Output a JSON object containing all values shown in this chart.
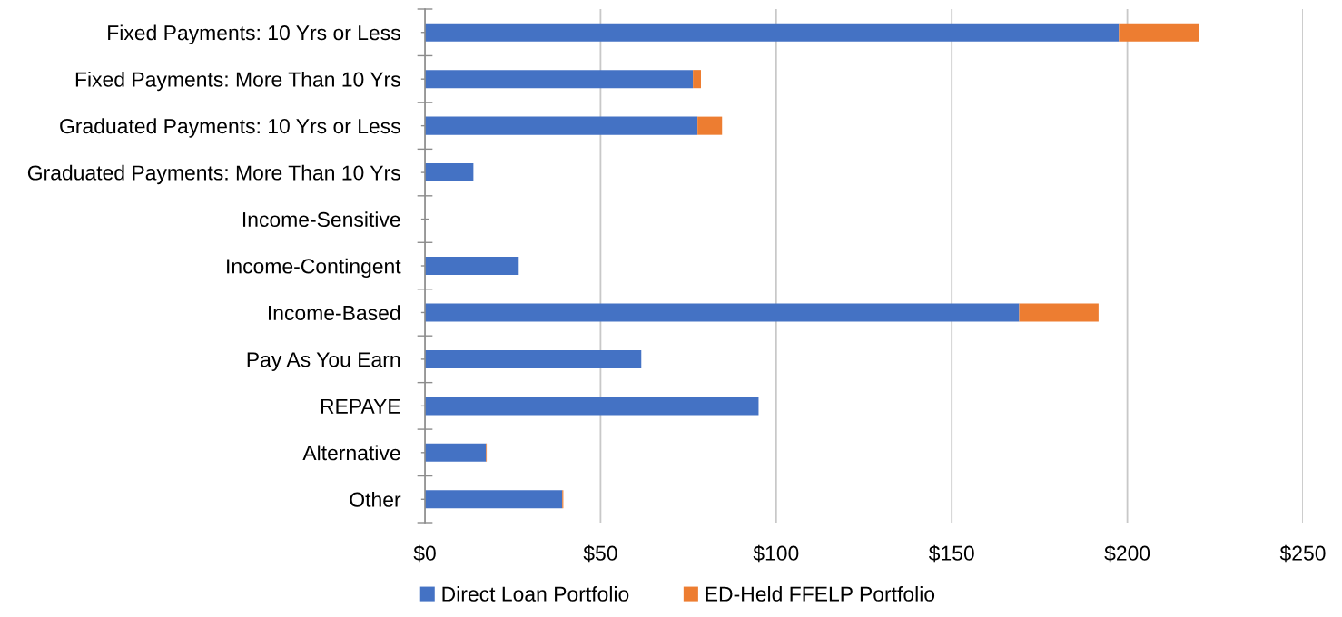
{
  "chart_data": {
    "type": "bar",
    "orientation": "horizontal",
    "stacked": true,
    "categories": [
      "Fixed Payments: 10 Yrs or Less",
      "Fixed Payments: More Than 10 Yrs",
      "Graduated Payments: 10 Yrs or Less",
      "Graduated Payments: More Than 10 Yrs",
      "Income-Sensitive",
      "Income-Contingent",
      "Income-Based",
      "Pay As You Earn",
      "REPAYE",
      "Alternative",
      "Other"
    ],
    "series": [
      {
        "name": "Direct Loan Portfolio",
        "color": "#4472c4",
        "values": [
          197.6,
          76.3,
          77.6,
          13.8,
          null,
          26.7,
          169.2,
          61.6,
          95.0,
          17.4,
          39.1
        ]
      },
      {
        "name": "ED-Held FFELP Portfolio",
        "color": "#ed7d31",
        "values": [
          22.9,
          2.3,
          7.0,
          null,
          null,
          null,
          22.6,
          null,
          null,
          0.2,
          0.3
        ]
      }
    ],
    "xlim": [
      0,
      250
    ],
    "xticks": [
      {
        "value": 0,
        "label": "$0"
      },
      {
        "value": 50,
        "label": "$50"
      },
      {
        "value": 100,
        "label": "$100"
      },
      {
        "value": 150,
        "label": "$150"
      },
      {
        "value": 200,
        "label": "$200"
      },
      {
        "value": 250,
        "label": "$250"
      }
    ],
    "grid": "x",
    "legend": "bottom"
  }
}
